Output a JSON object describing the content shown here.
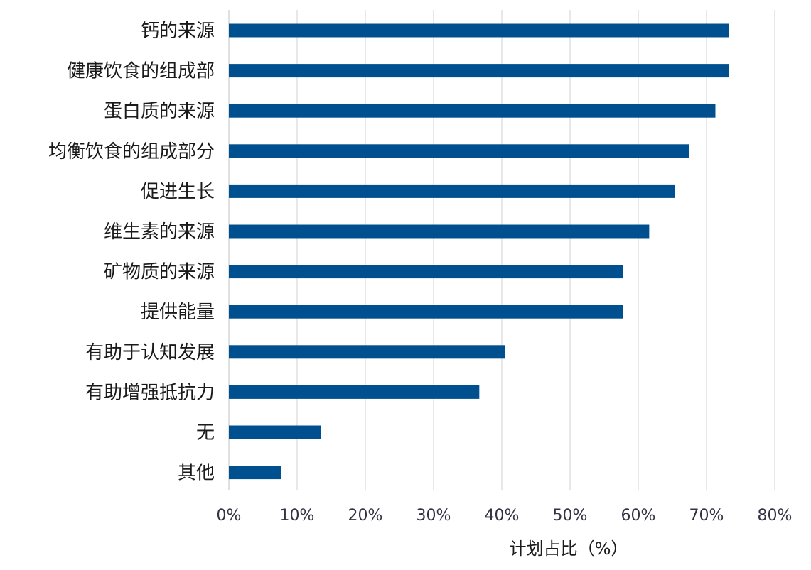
{
  "chart_data": {
    "type": "bar",
    "orientation": "horizontal",
    "categories": [
      "钙的来源",
      "健康饮食的组成部",
      "蛋白质的来源",
      "均衡饮食的组成部分",
      "促进生长",
      "维生素的来源",
      "矿物质的来源",
      "提供能量",
      "有助于认知发展",
      "有助增强抵抗力",
      "无",
      "其他"
    ],
    "values": [
      73.3,
      73.3,
      71.3,
      67.4,
      65.4,
      61.6,
      57.8,
      57.8,
      40.5,
      36.7,
      13.5,
      7.7
    ],
    "xlim": [
      0,
      80
    ],
    "x_ticks": [
      "0%",
      "10%",
      "20%",
      "30%",
      "40%",
      "50%",
      "60%",
      "70%",
      "80%"
    ],
    "xlabel": "计划占比（%）",
    "ylabel": "",
    "title": "",
    "grid": "vertical",
    "colors": {
      "bar": "#00508f",
      "grid": "#d9d9d9",
      "label": "#1a1a1a",
      "tick": "#333344"
    }
  }
}
